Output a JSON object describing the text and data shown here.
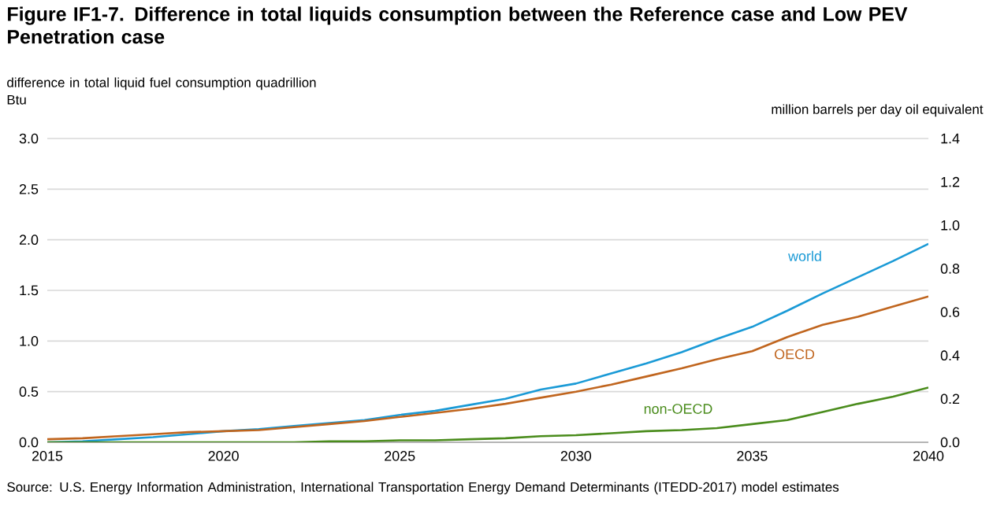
{
  "chart_data": {
    "type": "line",
    "title": "Figure IF1-7. Difference in total liquids consumption between the Reference case and Low PEV Penetration case",
    "ylabel": "difference  in total liquid fuel consumption quadrillion Btu",
    "y2label": "million barrels  per day oil equivalent",
    "x": [
      2015,
      2016,
      2017,
      2018,
      2019,
      2020,
      2021,
      2022,
      2023,
      2024,
      2025,
      2026,
      2027,
      2028,
      2029,
      2030,
      2031,
      2032,
      2033,
      2034,
      2035,
      2036,
      2037,
      2038,
      2039,
      2040
    ],
    "series": [
      {
        "name": "world",
        "color": "#1a9ad6",
        "values": [
          0,
          0.01,
          0.03,
          0.05,
          0.08,
          0.11,
          0.13,
          0.16,
          0.19,
          0.22,
          0.27,
          0.31,
          0.37,
          0.43,
          0.52,
          0.58,
          0.68,
          0.78,
          0.89,
          1.02,
          1.14,
          1.3,
          1.47,
          1.63,
          1.79,
          1.96
        ]
      },
      {
        "name": "OECD",
        "color": "#c0651e",
        "values": [
          0.03,
          0.04,
          0.06,
          0.08,
          0.1,
          0.11,
          0.12,
          0.15,
          0.18,
          0.21,
          0.25,
          0.29,
          0.33,
          0.38,
          0.44,
          0.5,
          0.57,
          0.65,
          0.73,
          0.82,
          0.9,
          1.04,
          1.16,
          1.24,
          1.34,
          1.44
        ]
      },
      {
        "name": "non-OECD",
        "color": "#4a8c1c",
        "values": [
          0,
          0,
          0,
          0,
          0,
          0,
          0,
          0,
          0.01,
          0.01,
          0.02,
          0.02,
          0.03,
          0.04,
          0.06,
          0.07,
          0.09,
          0.11,
          0.12,
          0.14,
          0.18,
          0.22,
          0.3,
          0.38,
          0.45,
          0.54
        ]
      }
    ],
    "xlim": [
      2015,
      2040
    ],
    "xticks": [
      2015,
      2020,
      2025,
      2030,
      2035,
      2040
    ],
    "ylim": [
      0,
      3
    ],
    "yticks": [
      {
        "value": 0,
        "label": "0.0"
      },
      0.5,
      {
        "value": 1,
        "label": "1.0"
      },
      1.5,
      {
        "value": 2,
        "label": "2.0"
      },
      2.5,
      {
        "value": 3,
        "label": "3.0"
      }
    ],
    "y2lim": [
      0,
      1.4
    ],
    "y2ticks": [
      {
        "value": 0,
        "label": "0.0"
      },
      0.2,
      0.4,
      0.6,
      0.8,
      {
        "value": 1,
        "label": "1.0"
      },
      1.2,
      1.4
    ],
    "grid": "y",
    "legend": false,
    "marker": "none",
    "line_style": "solid",
    "annotations": [
      "Source: U.S. Energy Information  Administration, International Transportation Energy Demand Determinants (ITEDD-2017) model estimates"
    ]
  }
}
